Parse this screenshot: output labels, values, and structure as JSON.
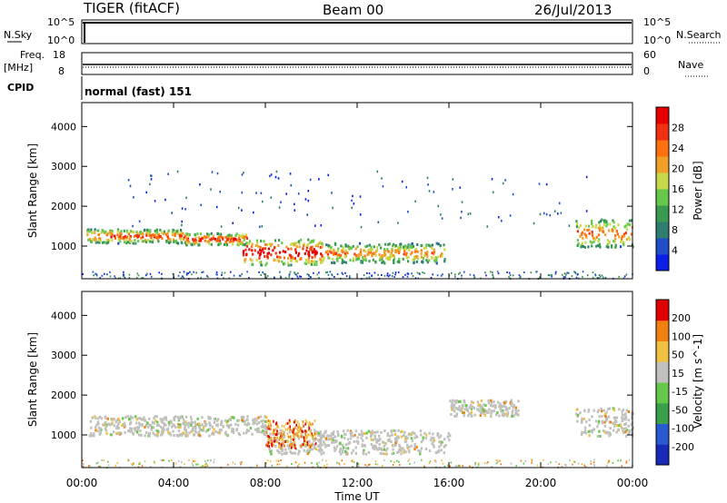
{
  "header": {
    "radar": "TIGER (fitACF)",
    "beam": "Beam 00",
    "date": "26/Jul/2013"
  },
  "strips": {
    "nsky_label": "N.Sky",
    "nsearch_label": "N.Search",
    "nsky_ticks": [
      "10^5",
      "10^0"
    ],
    "nsearch_ticks": [
      "10^5",
      "10^0"
    ],
    "freq_label": "Freq.",
    "freq_unit": "[MHz]",
    "freq_ticks": [
      "18",
      "8"
    ],
    "nave_label": "Nave",
    "nave_ticks": [
      "60",
      "0"
    ],
    "cpid_label": "CPID",
    "cpid_value": "normal (fast) 151"
  },
  "chart_data": [
    {
      "type": "heatmap",
      "panel": "power",
      "ylabel": "Slant Range [km]",
      "xlabel": "",
      "y_ticks": [
        "4000",
        "3000",
        "2000",
        "1000"
      ],
      "ylim": [
        180,
        4600
      ],
      "colorbar": {
        "label": "Power [dB]",
        "ticks": [
          "28",
          "24",
          "20",
          "16",
          "12",
          "8",
          "4"
        ],
        "colors": [
          "#0a1ee6",
          "#1f4ec8",
          "#2e7d6e",
          "#3a9a50",
          "#66c84a",
          "#c8d84a",
          "#f0a028",
          "#ff7010",
          "#f03010",
          "#e80000"
        ]
      },
      "bands": [
        {
          "t0": 0.2,
          "t1": 4.5,
          "r0": 1100,
          "r1": 1450,
          "level": 0.8
        },
        {
          "t0": 4.5,
          "t1": 7.2,
          "r0": 1050,
          "r1": 1350,
          "level": 0.85
        },
        {
          "t0": 7.0,
          "t1": 10.5,
          "r0": 550,
          "r1": 1200,
          "level": 0.95
        },
        {
          "t0": 10.5,
          "t1": 15.8,
          "r0": 600,
          "r1": 1100,
          "level": 0.7
        },
        {
          "t0": 21.5,
          "t1": 24.0,
          "r0": 1000,
          "r1": 1700,
          "level": 0.75
        }
      ]
    },
    {
      "type": "heatmap",
      "panel": "velocity",
      "ylabel": "Slant Range [km]",
      "xlabel": "Time UT",
      "y_ticks": [
        "4000",
        "3000",
        "2000",
        "1000"
      ],
      "ylim": [
        180,
        4600
      ],
      "colorbar": {
        "label": "Velocity [m s^-1]",
        "ticks": [
          "200",
          "100",
          "50",
          "15",
          "-15",
          "-50",
          "-100",
          "-200"
        ],
        "colors": [
          "#1a2ab8",
          "#2a5ad0",
          "#38a048",
          "#66c84a",
          "#c0c0bc",
          "#f0c040",
          "#f08010",
          "#e00000"
        ]
      },
      "gray_bands": [
        {
          "t0": 0.3,
          "t1": 8.0,
          "r0": 1000,
          "r1": 1500
        },
        {
          "t0": 8.0,
          "t1": 16.0,
          "r0": 550,
          "r1": 1150
        },
        {
          "t0": 16.0,
          "t1": 19.0,
          "r0": 1500,
          "r1": 1900
        },
        {
          "t0": 21.5,
          "t1": 24.0,
          "r0": 1000,
          "r1": 1700
        }
      ]
    }
  ],
  "time_axis": {
    "labels": [
      "00:00",
      "04:00",
      "08:00",
      "12:00",
      "16:00",
      "20:00",
      "00:00"
    ],
    "xlabel": "Time UT"
  }
}
